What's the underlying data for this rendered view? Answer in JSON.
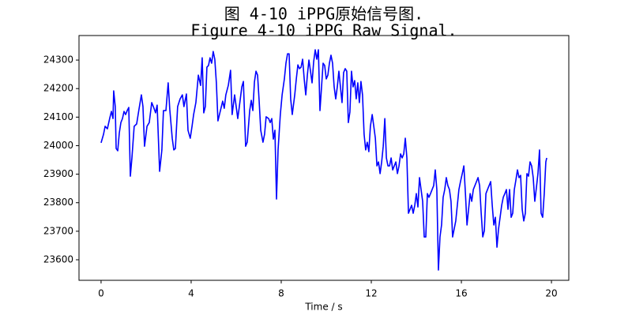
{
  "chart_data": {
    "type": "line",
    "title": "图 4-10 iPPG原始信号图.",
    "subtitle": "Figure 4-10 iPPG Raw Signal.",
    "x_label": "Time / s",
    "xlim": [
      -0.98,
      20.77
    ],
    "ylim": [
      23528,
      24386
    ],
    "xticks": [
      0,
      4,
      8,
      12,
      16,
      20
    ],
    "yticks": [
      23600,
      23700,
      23800,
      23900,
      24000,
      24100,
      24200,
      24300
    ],
    "grid": false,
    "series": [
      {
        "color": "#0000ff",
        "x": [
          0.0,
          0.11,
          0.18,
          0.28,
          0.39,
          0.46,
          0.53,
          0.56,
          0.63,
          0.67,
          0.74,
          0.81,
          0.88,
          0.95,
          1.02,
          1.09,
          1.16,
          1.23,
          1.3,
          1.37,
          1.47,
          1.58,
          1.68,
          1.79,
          1.86,
          1.93,
          2.04,
          2.14,
          2.25,
          2.35,
          2.42,
          2.49,
          2.6,
          2.7,
          2.77,
          2.88,
          2.98,
          3.05,
          3.16,
          3.23,
          3.3,
          3.4,
          3.51,
          3.61,
          3.68,
          3.79,
          3.86,
          3.96,
          4.04,
          4.11,
          4.21,
          4.32,
          4.42,
          4.49,
          4.56,
          4.63,
          4.7,
          4.77,
          4.84,
          4.91,
          4.98,
          5.05,
          5.12,
          5.19,
          5.3,
          5.4,
          5.47,
          5.54,
          5.65,
          5.75,
          5.82,
          5.93,
          6.0,
          6.07,
          6.14,
          6.25,
          6.32,
          6.42,
          6.49,
          6.6,
          6.67,
          6.74,
          6.81,
          6.88,
          6.95,
          7.02,
          7.09,
          7.19,
          7.26,
          7.33,
          7.44,
          7.51,
          7.58,
          7.65,
          7.72,
          7.79,
          7.86,
          7.96,
          8.04,
          8.14,
          8.21,
          8.28,
          8.35,
          8.42,
          8.49,
          8.6,
          8.67,
          8.74,
          8.81,
          8.88,
          8.95,
          9.02,
          9.09,
          9.16,
          9.23,
          9.3,
          9.37,
          9.44,
          9.51,
          9.58,
          9.65,
          9.72,
          9.79,
          9.86,
          9.93,
          10.0,
          10.07,
          10.14,
          10.21,
          10.28,
          10.35,
          10.42,
          10.49,
          10.56,
          10.63,
          10.7,
          10.77,
          10.84,
          10.91,
          10.98,
          11.05,
          11.12,
          11.19,
          11.26,
          11.33,
          11.4,
          11.47,
          11.54,
          11.61,
          11.68,
          11.75,
          11.82,
          11.89,
          11.96,
          12.04,
          12.11,
          12.18,
          12.25,
          12.32,
          12.39,
          12.46,
          12.53,
          12.6,
          12.67,
          12.74,
          12.81,
          12.88,
          12.95,
          13.02,
          13.09,
          13.16,
          13.23,
          13.3,
          13.37,
          13.44,
          13.51,
          13.58,
          13.65,
          13.72,
          13.79,
          13.86,
          13.93,
          14.0,
          14.07,
          14.14,
          14.21,
          14.28,
          14.35,
          14.42,
          14.49,
          14.56,
          14.63,
          14.7,
          14.77,
          14.84,
          14.91,
          14.98,
          15.05,
          15.12,
          15.19,
          15.26,
          15.33,
          15.4,
          15.47,
          15.54,
          15.61,
          15.68,
          15.75,
          15.82,
          15.89,
          15.96,
          16.04,
          16.11,
          16.18,
          16.25,
          16.32,
          16.39,
          16.46,
          16.53,
          16.6,
          16.67,
          16.74,
          16.81,
          16.88,
          16.95,
          17.02,
          17.09,
          17.16,
          17.23,
          17.3,
          17.37,
          17.44,
          17.51,
          17.58,
          17.65,
          17.72,
          17.79,
          17.86,
          17.93,
          18.0,
          18.07,
          18.14,
          18.21,
          18.28,
          18.35,
          18.42,
          18.49,
          18.56,
          18.63,
          18.7,
          18.77,
          18.84,
          18.91,
          18.98,
          19.05,
          19.12,
          19.19,
          19.26,
          19.33,
          19.4,
          19.47,
          19.54,
          19.61,
          19.68,
          19.75,
          19.79
        ],
        "values": [
          24010,
          24040,
          24068,
          24059,
          24098,
          24120,
          24095,
          24192,
          24137,
          23990,
          23982,
          24045,
          24081,
          24095,
          24120,
          24109,
          24123,
          24134,
          23893,
          23957,
          24068,
          24076,
          24126,
          24178,
          24137,
          23998,
          24068,
          24081,
          24151,
          24131,
          24115,
          24142,
          23910,
          23985,
          24123,
          24123,
          24220,
          24128,
          24026,
          23985,
          23990,
          24137,
          24164,
          24178,
          24137,
          24181,
          24054,
          24026,
          24068,
          24109,
          24151,
          24247,
          24211,
          24308,
          24115,
          24137,
          24275,
          24281,
          24308,
          24289,
          24330,
          24303,
          24220,
          24087,
          24123,
          24156,
          24131,
          24178,
          24211,
          24264,
          24109,
          24178,
          24137,
          24095,
          24137,
          24206,
          24225,
          23998,
          24012,
          24123,
          24159,
          24123,
          24223,
          24261,
          24247,
          24156,
          24054,
          24012,
          24040,
          24101,
          24095,
          24081,
          24095,
          24023,
          24054,
          23813,
          23985,
          24109,
          24178,
          24234,
          24289,
          24322,
          24322,
          24164,
          24109,
          24178,
          24234,
          24283,
          24270,
          24275,
          24303,
          24234,
          24178,
          24247,
          24300,
          24261,
          24220,
          24294,
          24336,
          24303,
          24336,
          24123,
          24206,
          24289,
          24281,
          24234,
          24247,
          24289,
          24317,
          24289,
          24206,
          24164,
          24206,
          24261,
          24206,
          24151,
          24256,
          24270,
          24261,
          24081,
          24118,
          24261,
          24206,
          24228,
          24164,
          24220,
          24151,
          24225,
          24178,
          24040,
          23985,
          24012,
          23979,
          24068,
          24109,
          24068,
          24026,
          23929,
          23943,
          23902,
          23943,
          23998,
          24095,
          23957,
          23929,
          23929,
          23957,
          23915,
          23929,
          23943,
          23902,
          23929,
          23971,
          23957,
          23971,
          24026,
          23957,
          23763,
          23777,
          23791,
          23763,
          23791,
          23832,
          23785,
          23888,
          23846,
          23805,
          23680,
          23680,
          23832,
          23819,
          23832,
          23846,
          23860,
          23915,
          23846,
          23564,
          23680,
          23722,
          23819,
          23846,
          23888,
          23860,
          23846,
          23805,
          23680,
          23708,
          23736,
          23791,
          23846,
          23874,
          23902,
          23929,
          23832,
          23722,
          23777,
          23832,
          23805,
          23846,
          23860,
          23874,
          23888,
          23860,
          23763,
          23680,
          23702,
          23832,
          23846,
          23860,
          23874,
          23791,
          23722,
          23749,
          23644,
          23708,
          23749,
          23791,
          23819,
          23832,
          23846,
          23777,
          23846,
          23749,
          23763,
          23846,
          23879,
          23915,
          23888,
          23896,
          23777,
          23736,
          23763,
          23902,
          23893,
          23943,
          23929,
          23888,
          23805,
          23852,
          23902,
          23985,
          23763,
          23749,
          23832,
          23943,
          23957
        ]
      }
    ]
  }
}
